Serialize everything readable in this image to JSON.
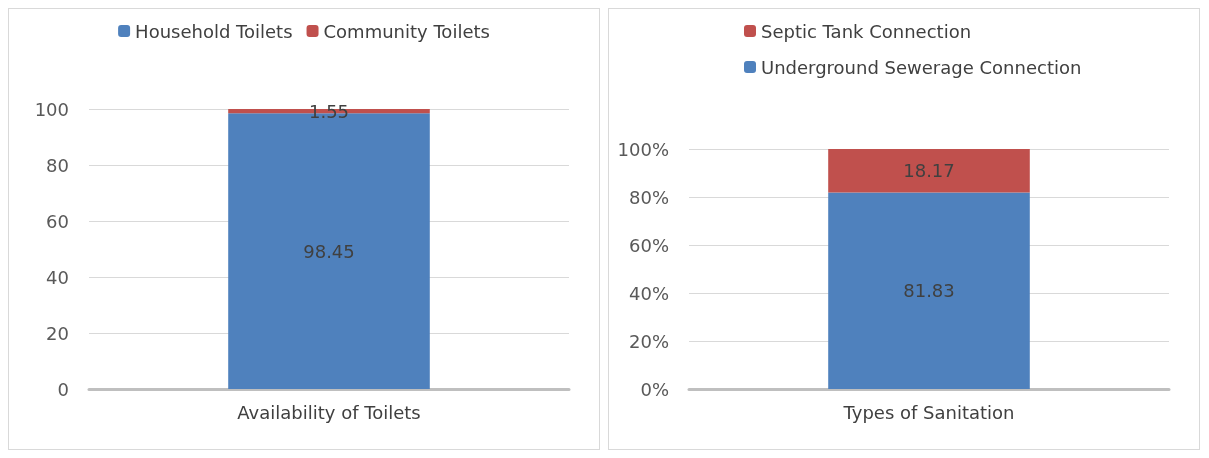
{
  "chart_data": [
    {
      "type": "bar",
      "stacked": true,
      "categories": [
        "Availability of Toilets"
      ],
      "series": [
        {
          "name": "Household Toilets",
          "color": "#4f81bd",
          "values": [
            98.45
          ]
        },
        {
          "name": "Community Toilets",
          "color": "#c0504d",
          "values": [
            1.55
          ]
        }
      ],
      "ylim": [
        0,
        100
      ],
      "yticks": [
        0,
        20,
        40,
        60,
        80,
        100
      ],
      "grid": "y",
      "legend": "top",
      "data_labels": true
    },
    {
      "type": "bar",
      "stacked": true,
      "categories": [
        "Types of Sanitation"
      ],
      "series": [
        {
          "name": "Underground Sewerage Connection",
          "color": "#4f81bd",
          "values": [
            81.83
          ]
        },
        {
          "name": "Septic Tank Connection",
          "color": "#c0504d",
          "values": [
            18.17
          ]
        }
      ],
      "ylim": [
        0,
        100
      ],
      "yticks": [
        {
          "value": 0,
          "label": "0%"
        },
        {
          "value": 20,
          "label": "20%"
        },
        {
          "value": 40,
          "label": "40%"
        },
        {
          "value": 60,
          "label": "60%"
        },
        {
          "value": 80,
          "label": "80%"
        },
        {
          "value": 100,
          "label": "100%"
        }
      ],
      "grid": "y",
      "legend": "top left",
      "data_labels": true
    }
  ]
}
